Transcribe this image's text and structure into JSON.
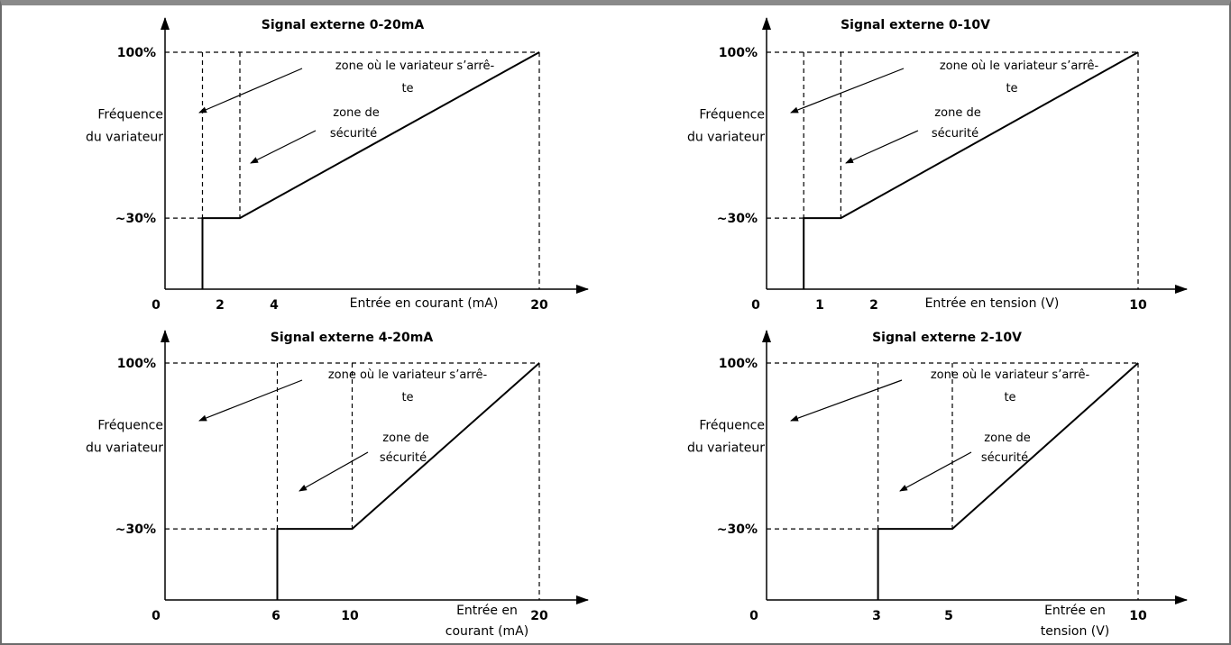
{
  "colors": {
    "line": "#000000",
    "frame": "#6b6b6b",
    "background": "#ffffff"
  },
  "chart_data": [
    {
      "type": "line",
      "title": "Signal externe 0-20mA",
      "xlabel": [
        "Entrée en courant (mA)"
      ],
      "ylabel": [
        "Fréquence",
        "du variateur"
      ],
      "x_ticks": [
        "0",
        "2",
        "4",
        "20"
      ],
      "y_ticks": [
        "~30%",
        "100%"
      ],
      "xlim": [
        0,
        20
      ],
      "ylim": [
        0,
        100
      ],
      "stop_threshold": 2,
      "safety_limit": 4,
      "min_level": 30,
      "annotations": {
        "stop_zone": [
          "zone où le variateur s’arrê-",
          "te"
        ],
        "safety_zone": [
          "zone de",
          "sécurité"
        ]
      },
      "series": [
        {
          "x": [
            2,
            2,
            4,
            20
          ],
          "y": [
            0,
            30,
            30,
            100
          ]
        }
      ]
    },
    {
      "type": "line",
      "title": "Signal externe 0-10V",
      "xlabel": [
        "Entrée en tension (V)"
      ],
      "ylabel": [
        "Fréquence",
        "du variateur"
      ],
      "x_ticks": [
        "0",
        "1",
        "2",
        "10"
      ],
      "y_ticks": [
        "~30%",
        "100%"
      ],
      "xlim": [
        0,
        10
      ],
      "ylim": [
        0,
        100
      ],
      "stop_threshold": 1,
      "safety_limit": 2,
      "min_level": 30,
      "annotations": {
        "stop_zone": [
          "zone où le variateur s’arrê-",
          "te"
        ],
        "safety_zone": [
          "zone de",
          "sécurité"
        ]
      },
      "series": [
        {
          "x": [
            1,
            1,
            2,
            10
          ],
          "y": [
            0,
            30,
            30,
            100
          ]
        }
      ]
    },
    {
      "type": "line",
      "title": "Signal externe 4-20mA",
      "xlabel": [
        "Entrée en",
        "courant (mA)"
      ],
      "ylabel": [
        "Fréquence",
        "du variateur"
      ],
      "x_ticks": [
        "0",
        "6",
        "10",
        "20"
      ],
      "y_ticks": [
        "~30%",
        "100%"
      ],
      "xlim": [
        0,
        20
      ],
      "ylim": [
        0,
        100
      ],
      "stop_threshold": 6,
      "safety_limit": 10,
      "min_level": 30,
      "annotations": {
        "stop_zone": [
          "zone où le variateur s’arrê-",
          "te"
        ],
        "safety_zone": [
          "zone de",
          "sécurité"
        ]
      },
      "series": [
        {
          "x": [
            6,
            6,
            10,
            20
          ],
          "y": [
            0,
            30,
            30,
            100
          ]
        }
      ]
    },
    {
      "type": "line",
      "title": "Signal externe 2-10V",
      "xlabel": [
        "Entrée en",
        "tension (V)"
      ],
      "ylabel": [
        "Fréquence",
        "du variateur"
      ],
      "x_ticks": [
        "0",
        "3",
        "5",
        "10"
      ],
      "y_ticks": [
        "~30%",
        "100%"
      ],
      "xlim": [
        0,
        10
      ],
      "ylim": [
        0,
        100
      ],
      "stop_threshold": 3,
      "safety_limit": 5,
      "min_level": 30,
      "annotations": {
        "stop_zone": [
          "zone où le variateur s’arrê-",
          "te"
        ],
        "safety_zone": [
          "zone de",
          "sécurité"
        ]
      },
      "series": [
        {
          "x": [
            3,
            3,
            5,
            10
          ],
          "y": [
            0,
            30,
            30,
            100
          ]
        }
      ]
    }
  ]
}
